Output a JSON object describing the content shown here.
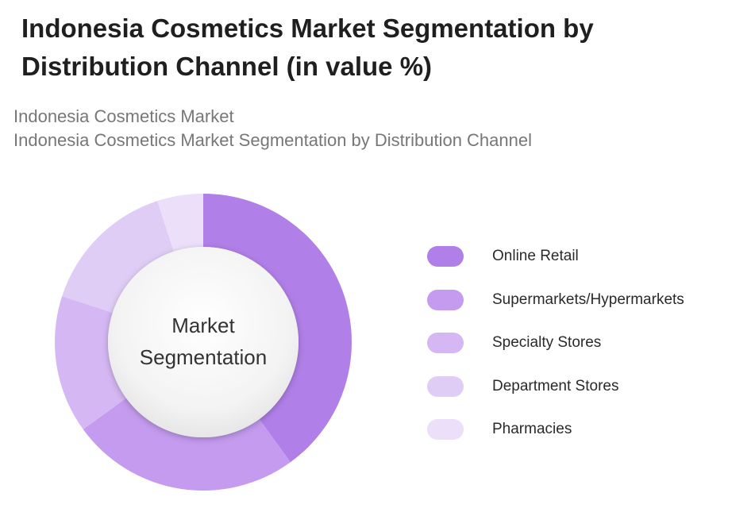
{
  "title": "Indonesia Cosmetics Market Segmentation by Distribution Channel (in value %)",
  "subtitle_line1": "Indonesia Cosmetics Market",
  "subtitle_line2": "Indonesia Cosmetics Market Segmentation by Distribution Channel",
  "chart_data": {
    "type": "pie",
    "variant": "donut",
    "center_label_line1": "Market",
    "center_label_line2": "Segmentation",
    "legend_position": "right",
    "categories": [
      "Online Retail",
      "Supermarkets/Hypermarkets",
      "Specialty Stores",
      "Department Stores",
      "Pharmacies"
    ],
    "values": [
      40,
      25,
      15,
      15,
      5
    ],
    "colors": [
      "#b07fe8",
      "#c49bee",
      "#d5b7f3",
      "#e0cdf6",
      "#ebdffa"
    ]
  }
}
